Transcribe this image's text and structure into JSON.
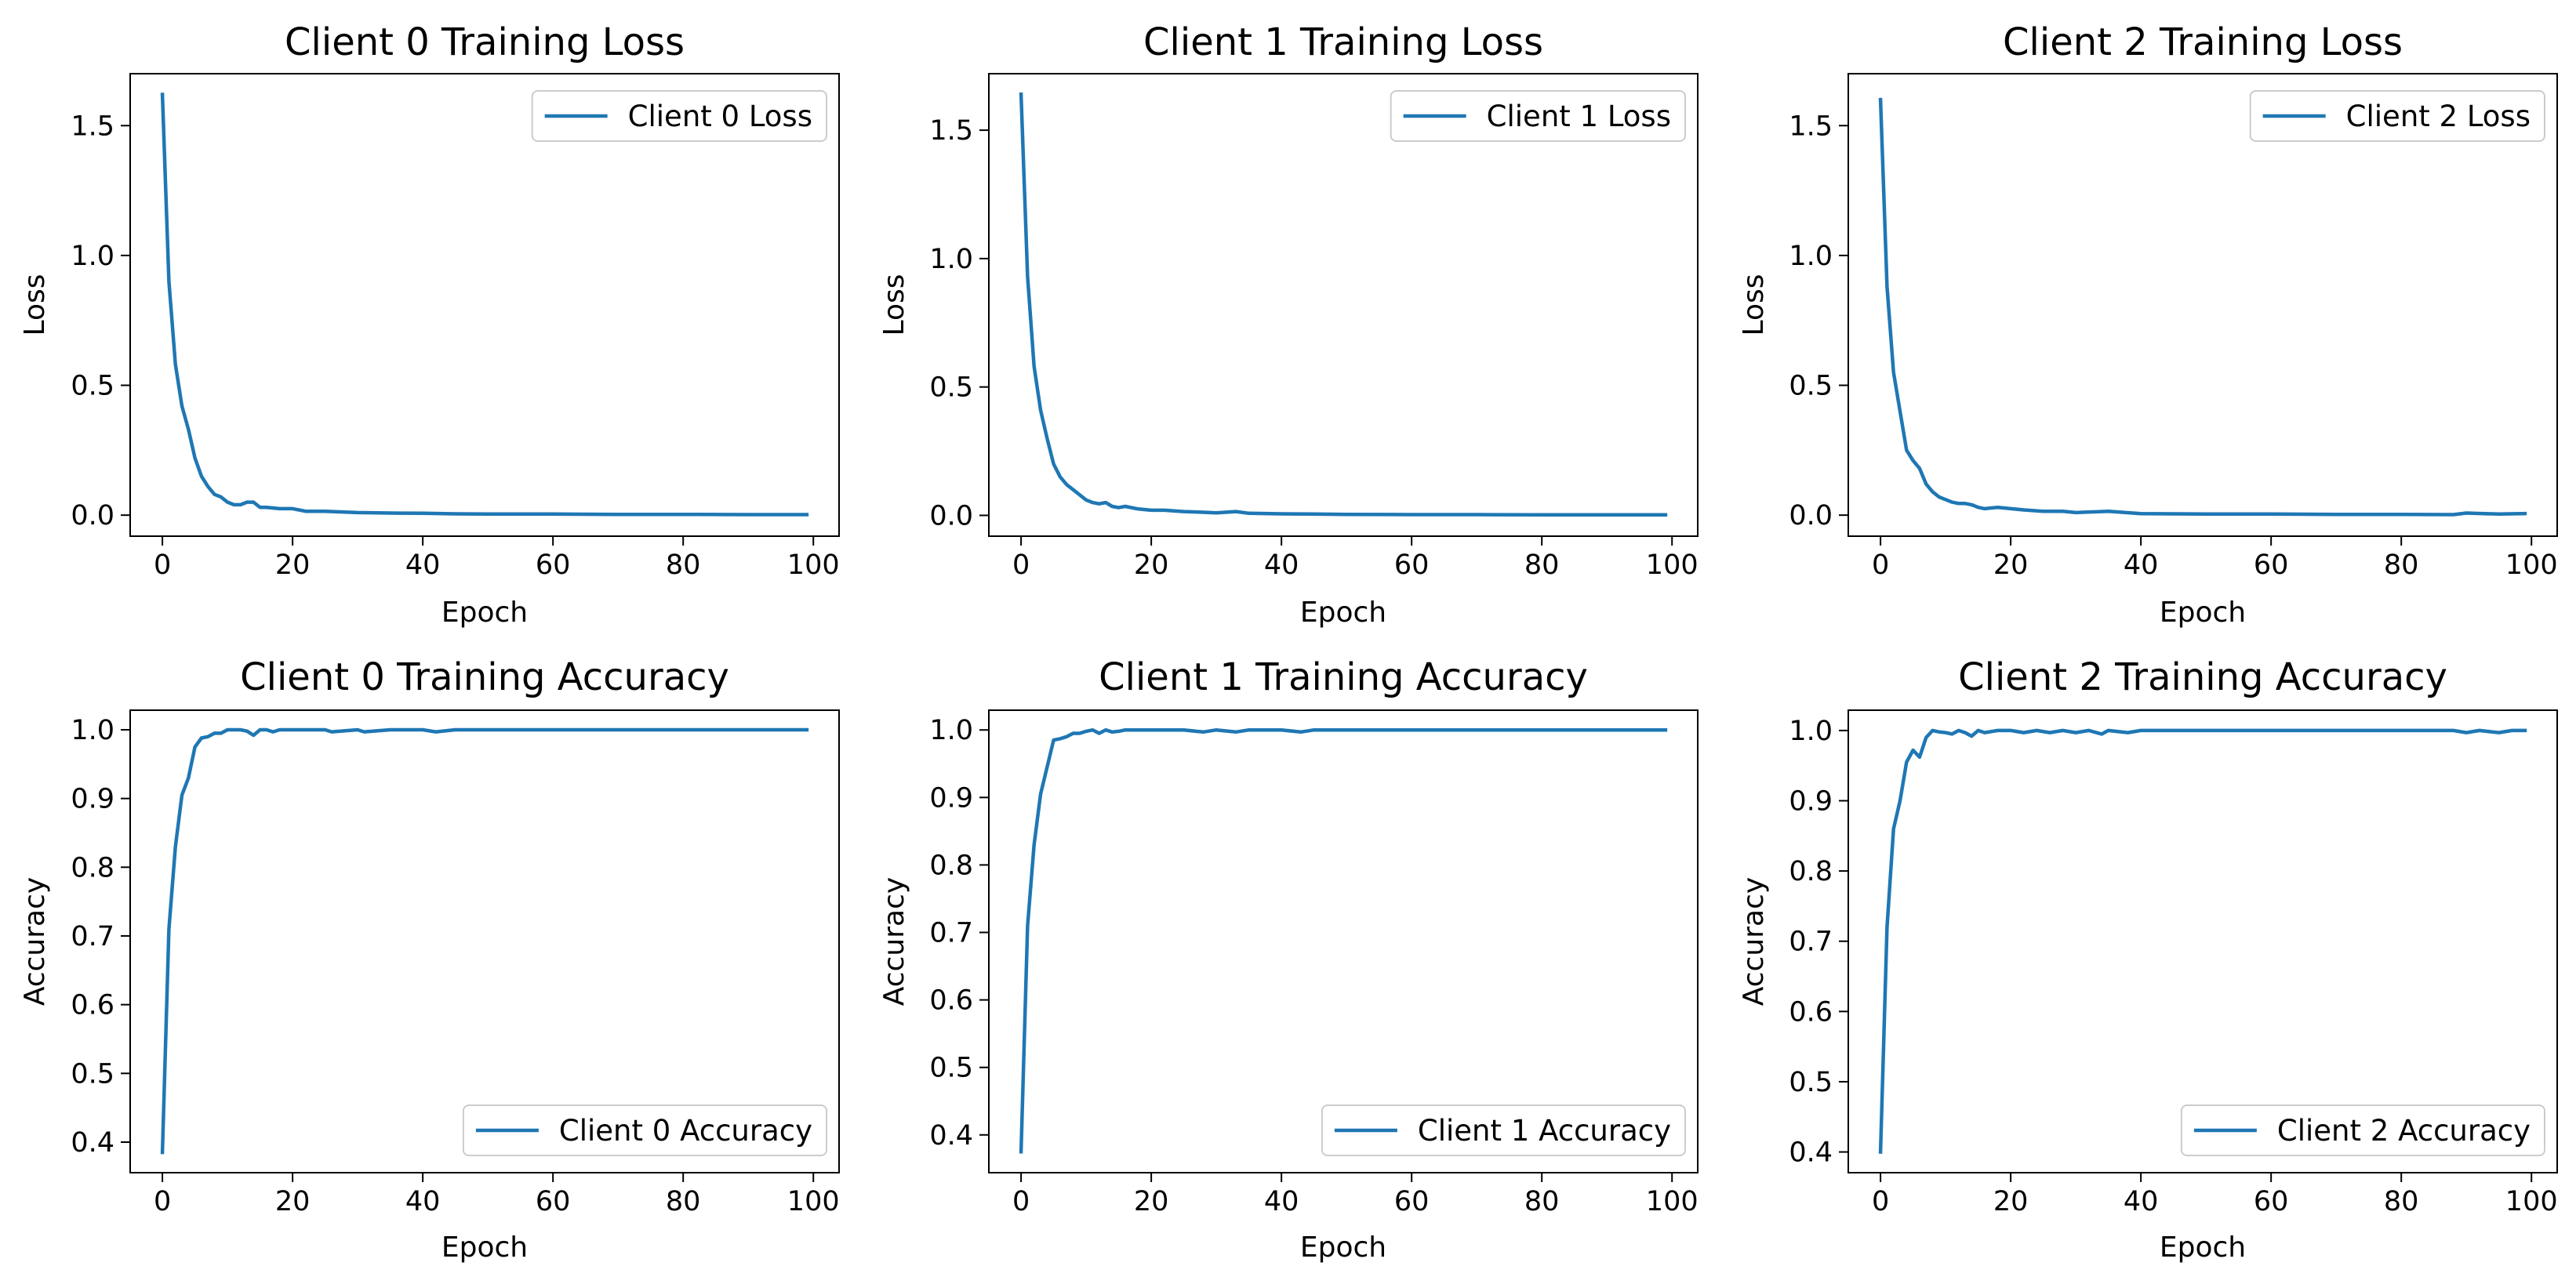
{
  "chart_data": [
    {
      "type": "line",
      "title": "Client 0 Training Loss",
      "xlabel": "Epoch",
      "ylabel": "Loss",
      "xlim": [
        -4.95,
        103.95
      ],
      "ylim": [
        -0.081,
        1.7
      ],
      "xticks": [
        0,
        20,
        40,
        60,
        80,
        100
      ],
      "yticks": [
        0.0,
        0.5,
        1.0,
        1.5
      ],
      "ytick_decimals": 1,
      "legend_position": "top-right",
      "series": [
        {
          "name": "Client 0 Loss",
          "color": "#1f77b4",
          "x": [
            0,
            1,
            2,
            3,
            4,
            5,
            6,
            7,
            8,
            9,
            10,
            11,
            12,
            13,
            14,
            15,
            16,
            18,
            20,
            22,
            25,
            28,
            30,
            35,
            40,
            45,
            50,
            60,
            70,
            80,
            90,
            99
          ],
          "y": [
            1.62,
            0.9,
            0.58,
            0.42,
            0.33,
            0.22,
            0.15,
            0.11,
            0.08,
            0.07,
            0.05,
            0.04,
            0.04,
            0.05,
            0.05,
            0.03,
            0.03,
            0.025,
            0.025,
            0.015,
            0.015,
            0.012,
            0.01,
            0.008,
            0.007,
            0.005,
            0.004,
            0.004,
            0.003,
            0.003,
            0.002,
            0.002
          ]
        }
      ]
    },
    {
      "type": "line",
      "title": "Client 1 Training Loss",
      "xlabel": "Epoch",
      "ylabel": "Loss",
      "xlim": [
        -4.95,
        103.95
      ],
      "ylim": [
        -0.081,
        1.72
      ],
      "xticks": [
        0,
        20,
        40,
        60,
        80,
        100
      ],
      "yticks": [
        0.0,
        0.5,
        1.0,
        1.5
      ],
      "ytick_decimals": 1,
      "legend_position": "top-right",
      "series": [
        {
          "name": "Client 1 Loss",
          "color": "#1f77b4",
          "x": [
            0,
            1,
            2,
            3,
            4,
            5,
            6,
            7,
            8,
            9,
            10,
            11,
            12,
            13,
            14,
            15,
            16,
            18,
            20,
            22,
            25,
            28,
            30,
            33,
            35,
            40,
            45,
            50,
            60,
            70,
            80,
            90,
            99
          ],
          "y": [
            1.64,
            0.93,
            0.58,
            0.41,
            0.3,
            0.2,
            0.15,
            0.12,
            0.1,
            0.08,
            0.06,
            0.05,
            0.045,
            0.05,
            0.035,
            0.03,
            0.035,
            0.025,
            0.02,
            0.02,
            0.015,
            0.012,
            0.01,
            0.015,
            0.008,
            0.006,
            0.005,
            0.004,
            0.003,
            0.003,
            0.002,
            0.002,
            0.002
          ]
        }
      ]
    },
    {
      "type": "line",
      "title": "Client 2 Training Loss",
      "xlabel": "Epoch",
      "ylabel": "Loss",
      "xlim": [
        -4.95,
        103.95
      ],
      "ylim": [
        -0.081,
        1.7
      ],
      "xticks": [
        0,
        20,
        40,
        60,
        80,
        100
      ],
      "yticks": [
        0.0,
        0.5,
        1.0,
        1.5
      ],
      "ytick_decimals": 1,
      "legend_position": "top-right",
      "series": [
        {
          "name": "Client 2 Loss",
          "color": "#1f77b4",
          "x": [
            0,
            1,
            2,
            3,
            4,
            5,
            6,
            7,
            8,
            9,
            10,
            11,
            12,
            13,
            14,
            15,
            16,
            18,
            20,
            22,
            25,
            28,
            30,
            35,
            40,
            45,
            50,
            60,
            70,
            80,
            88,
            90,
            95,
            99
          ],
          "y": [
            1.6,
            0.88,
            0.55,
            0.4,
            0.25,
            0.21,
            0.18,
            0.12,
            0.09,
            0.07,
            0.06,
            0.05,
            0.045,
            0.045,
            0.04,
            0.03,
            0.025,
            0.03,
            0.025,
            0.02,
            0.015,
            0.015,
            0.01,
            0.015,
            0.006,
            0.005,
            0.004,
            0.004,
            0.003,
            0.003,
            0.002,
            0.008,
            0.004,
            0.006
          ]
        }
      ]
    },
    {
      "type": "line",
      "title": "Client 0 Training Accuracy",
      "xlabel": "Epoch",
      "ylabel": "Accuracy",
      "xlim": [
        -4.95,
        103.95
      ],
      "ylim": [
        0.3555,
        1.0285
      ],
      "xticks": [
        0,
        20,
        40,
        60,
        80,
        100
      ],
      "yticks": [
        0.4,
        0.5,
        0.6,
        0.7,
        0.8,
        0.9,
        1.0
      ],
      "ytick_decimals": 1,
      "legend_position": "bottom-right",
      "series": [
        {
          "name": "Client 0 Accuracy",
          "color": "#1f77b4",
          "x": [
            0,
            1,
            2,
            3,
            4,
            5,
            6,
            7,
            8,
            9,
            10,
            11,
            12,
            13,
            14,
            15,
            16,
            17,
            18,
            20,
            25,
            26,
            30,
            31,
            35,
            40,
            42,
            45,
            50,
            60,
            70,
            80,
            90,
            99
          ],
          "y": [
            0.385,
            0.71,
            0.83,
            0.905,
            0.93,
            0.975,
            0.988,
            0.99,
            0.995,
            0.995,
            1.0,
            1.0,
            1.0,
            0.998,
            0.992,
            1.0,
            1.0,
            0.997,
            1.0,
            1.0,
            1.0,
            0.997,
            1.0,
            0.997,
            1.0,
            1.0,
            0.997,
            1.0,
            1.0,
            1.0,
            1.0,
            1.0,
            1.0,
            1.0
          ]
        }
      ]
    },
    {
      "type": "line",
      "title": "Client 1 Training Accuracy",
      "xlabel": "Epoch",
      "ylabel": "Accuracy",
      "xlim": [
        -4.95,
        103.95
      ],
      "ylim": [
        0.344,
        1.0293
      ],
      "xticks": [
        0,
        20,
        40,
        60,
        80,
        100
      ],
      "yticks": [
        0.4,
        0.5,
        0.6,
        0.7,
        0.8,
        0.9,
        1.0
      ],
      "ytick_decimals": 1,
      "legend_position": "bottom-right",
      "series": [
        {
          "name": "Client 1 Accuracy",
          "color": "#1f77b4",
          "x": [
            0,
            1,
            2,
            3,
            4,
            5,
            6,
            7,
            8,
            9,
            10,
            11,
            12,
            13,
            14,
            15,
            16,
            18,
            20,
            25,
            28,
            30,
            33,
            35,
            40,
            43,
            45,
            50,
            60,
            70,
            80,
            90,
            99
          ],
          "y": [
            0.375,
            0.71,
            0.83,
            0.905,
            0.945,
            0.985,
            0.987,
            0.99,
            0.995,
            0.995,
            0.998,
            1.0,
            0.995,
            1.0,
            0.997,
            0.998,
            1.0,
            1.0,
            1.0,
            1.0,
            0.997,
            1.0,
            0.997,
            1.0,
            1.0,
            0.997,
            1.0,
            1.0,
            1.0,
            1.0,
            1.0,
            1.0,
            1.0
          ]
        }
      ]
    },
    {
      "type": "line",
      "title": "Client 2 Training Accuracy",
      "xlabel": "Epoch",
      "ylabel": "Accuracy",
      "xlim": [
        -4.95,
        103.95
      ],
      "ylim": [
        0.3705,
        1.0289
      ],
      "xticks": [
        0,
        20,
        40,
        60,
        80,
        100
      ],
      "yticks": [
        0.4,
        0.5,
        0.6,
        0.7,
        0.8,
        0.9,
        1.0
      ],
      "ytick_decimals": 1,
      "legend_position": "bottom-right",
      "series": [
        {
          "name": "Client 2 Accuracy",
          "color": "#1f77b4",
          "x": [
            0,
            1,
            2,
            3,
            4,
            5,
            6,
            7,
            8,
            9,
            10,
            11,
            12,
            13,
            14,
            15,
            16,
            18,
            20,
            22,
            24,
            26,
            28,
            30,
            32,
            34,
            35,
            38,
            40,
            45,
            50,
            60,
            70,
            80,
            88,
            90,
            92,
            95,
            97,
            99
          ],
          "y": [
            0.4,
            0.72,
            0.86,
            0.9,
            0.955,
            0.972,
            0.962,
            0.99,
            1.0,
            0.998,
            0.997,
            0.995,
            1.0,
            0.997,
            0.992,
            1.0,
            0.997,
            1.0,
            1.0,
            0.997,
            1.0,
            0.997,
            1.0,
            0.997,
            1.0,
            0.995,
            1.0,
            0.997,
            1.0,
            1.0,
            1.0,
            1.0,
            1.0,
            1.0,
            1.0,
            0.997,
            1.0,
            0.997,
            1.0,
            1.0
          ]
        }
      ]
    }
  ]
}
